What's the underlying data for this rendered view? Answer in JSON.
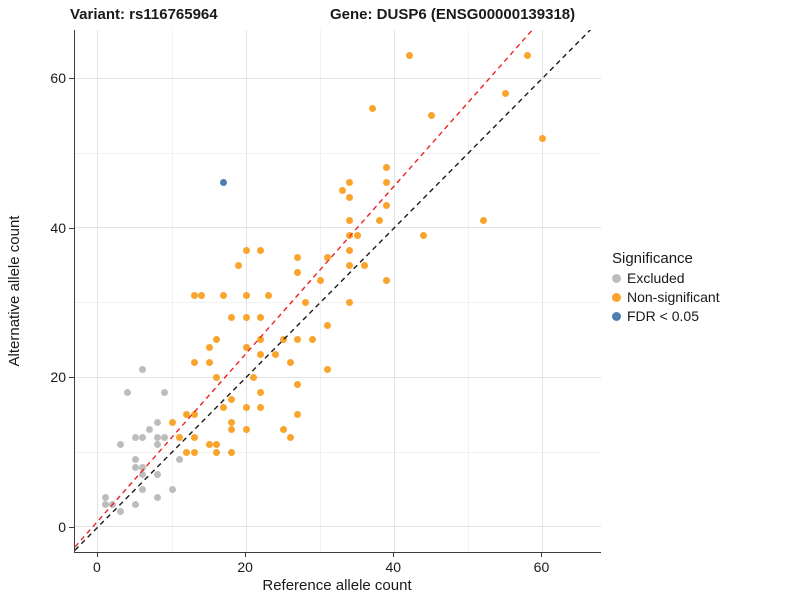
{
  "titles": {
    "variant": "Variant: rs116765964",
    "gene": "Gene: DUSP6 (ENSG00000139318)"
  },
  "axes": {
    "x_label": "Reference allele count",
    "y_label": "Alternative allele count",
    "x_ticks": [
      0,
      20,
      40,
      60
    ],
    "y_ticks": [
      0,
      20,
      40,
      60
    ],
    "x_minor_ticks": [
      10,
      30,
      50
    ],
    "y_minor_ticks": [
      10,
      30,
      50
    ],
    "x_range": [
      -3.1,
      67.9
    ],
    "y_range": [
      -3.35,
      66.45
    ]
  },
  "legend": {
    "title": "Significance",
    "items": [
      {
        "label": "Excluded",
        "color": "#bdbdbd"
      },
      {
        "label": "Non-significant",
        "color": "#f9a42c"
      },
      {
        "label": "FDR < 0.05",
        "color": "#4d7eb0"
      }
    ]
  },
  "chart_data": {
    "type": "scatter",
    "title": "Variant: rs116765964 — Gene: DUSP6 (ENSG00000139318)",
    "xlabel": "Reference allele count",
    "ylabel": "Alternative allele count",
    "xlim": [
      -3.1,
      67.9
    ],
    "ylim": [
      -3.35,
      66.45
    ],
    "grid": true,
    "legend_position": "right",
    "series": [
      {
        "name": "Excluded",
        "color": "#bdbdbd",
        "points": [
          [
            1,
            4
          ],
          [
            1,
            3
          ],
          [
            2,
            3
          ],
          [
            3,
            2
          ],
          [
            5,
            3
          ],
          [
            6,
            5
          ],
          [
            8,
            4
          ],
          [
            10,
            5
          ],
          [
            6,
            7
          ],
          [
            8,
            7
          ],
          [
            5,
            8
          ],
          [
            6,
            8
          ],
          [
            5,
            9
          ],
          [
            11,
            9
          ],
          [
            3,
            11
          ],
          [
            8,
            11
          ],
          [
            5,
            12
          ],
          [
            6,
            12
          ],
          [
            8,
            12
          ],
          [
            9,
            12
          ],
          [
            7,
            13
          ],
          [
            8,
            14
          ],
          [
            4,
            18
          ],
          [
            9,
            18
          ],
          [
            6,
            21
          ]
        ]
      },
      {
        "name": "Non-significant",
        "color": "#f9a42c",
        "points": [
          [
            10,
            14
          ],
          [
            11,
            12
          ],
          [
            12,
            15
          ],
          [
            12,
            10
          ],
          [
            13,
            15
          ],
          [
            13,
            12
          ],
          [
            13,
            10
          ],
          [
            15,
            11
          ],
          [
            16,
            11
          ],
          [
            16,
            10
          ],
          [
            17,
            16
          ],
          [
            18,
            17
          ],
          [
            18,
            14
          ],
          [
            18,
            13
          ],
          [
            18,
            10
          ],
          [
            20,
            16
          ],
          [
            20,
            13
          ],
          [
            22,
            16
          ],
          [
            25,
            13
          ],
          [
            26,
            12
          ],
          [
            27,
            15
          ],
          [
            13,
            22
          ],
          [
            15,
            22
          ],
          [
            16,
            20
          ],
          [
            16,
            25
          ],
          [
            15,
            24
          ],
          [
            20,
            24
          ],
          [
            21,
            20
          ],
          [
            22,
            25
          ],
          [
            22,
            23
          ],
          [
            22,
            18
          ],
          [
            24,
            23
          ],
          [
            25,
            25
          ],
          [
            26,
            22
          ],
          [
            27,
            25
          ],
          [
            27,
            19
          ],
          [
            29,
            25
          ],
          [
            31,
            27
          ],
          [
            31,
            21
          ],
          [
            18,
            28
          ],
          [
            20,
            28
          ],
          [
            22,
            28
          ],
          [
            28,
            30
          ],
          [
            34,
            30
          ],
          [
            13,
            31
          ],
          [
            14,
            31
          ],
          [
            17,
            31
          ],
          [
            20,
            31
          ],
          [
            23,
            31
          ],
          [
            19,
            35
          ],
          [
            20,
            37
          ],
          [
            22,
            37
          ],
          [
            27,
            36
          ],
          [
            27,
            34
          ],
          [
            30,
            33
          ],
          [
            31,
            36
          ],
          [
            34,
            35
          ],
          [
            36,
            35
          ],
          [
            34,
            37
          ],
          [
            34,
            39
          ],
          [
            35,
            39
          ],
          [
            39,
            33
          ],
          [
            38,
            41
          ],
          [
            34,
            41
          ],
          [
            44,
            39
          ],
          [
            52,
            41
          ],
          [
            33,
            45
          ],
          [
            34,
            44
          ],
          [
            34,
            46
          ],
          [
            39,
            43
          ],
          [
            39,
            46
          ],
          [
            39,
            48
          ],
          [
            42,
            63
          ],
          [
            45,
            55
          ],
          [
            37,
            56
          ],
          [
            55,
            58
          ],
          [
            58,
            63
          ],
          [
            60,
            52
          ]
        ]
      },
      {
        "name": "FDR < 0.05",
        "color": "#4d7eb0",
        "points": [
          [
            17,
            46
          ]
        ]
      }
    ],
    "lines": [
      {
        "name": "identity-line",
        "slope": 1,
        "intercept": 0,
        "color": "#1a1a1a",
        "dashed": true
      },
      {
        "name": "fit-line",
        "slope": 1.12,
        "intercept": 0.8,
        "color": "#ee2222",
        "dashed": true
      }
    ]
  }
}
